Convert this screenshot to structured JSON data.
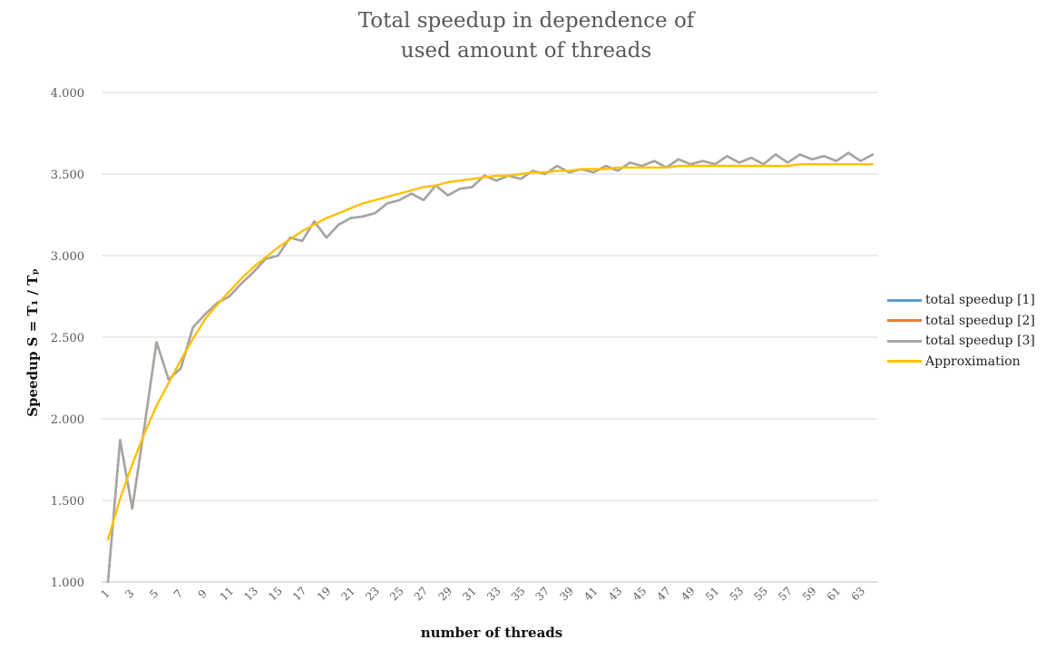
{
  "chart_data": {
    "type": "line",
    "title_lines": [
      "Total speedup in dependence of",
      "used amount of threads"
    ],
    "xlabel": "number of threads",
    "ylabel": "Speedup S = T₁ / Tₚ",
    "ylim": [
      1.0,
      4.0
    ],
    "y_ticks": [
      "1.000",
      "1.500",
      "2.000",
      "2.500",
      "3.000",
      "3.500",
      "4.000"
    ],
    "x_tick_labels": [
      "1",
      "3",
      "5",
      "7",
      "9",
      "11",
      "13",
      "15",
      "17",
      "19",
      "21",
      "23",
      "25",
      "27",
      "29",
      "31",
      "33",
      "35",
      "37",
      "39",
      "41",
      "43",
      "45",
      "47",
      "49",
      "51",
      "53",
      "55",
      "57",
      "59",
      "61",
      "63"
    ],
    "grid": true,
    "legend_position": "right",
    "x": [
      1,
      2,
      3,
      4,
      5,
      6,
      7,
      8,
      9,
      10,
      11,
      12,
      13,
      14,
      15,
      16,
      17,
      18,
      19,
      20,
      21,
      22,
      23,
      24,
      25,
      26,
      27,
      28,
      29,
      30,
      31,
      32,
      33,
      34,
      35,
      36,
      37,
      38,
      39,
      40,
      41,
      42,
      43,
      44,
      45,
      46,
      47,
      48,
      49,
      50,
      51,
      52,
      53,
      54,
      55,
      56,
      57,
      58,
      59,
      60,
      61,
      62,
      63,
      64
    ],
    "series": [
      {
        "name": "total speedup [1]",
        "color": "#5b9bd5",
        "values": [
          1.0,
          1.87,
          1.45,
          1.95,
          2.47,
          2.24,
          2.31,
          2.56,
          2.64,
          2.71,
          2.75,
          2.83,
          2.9,
          2.98,
          3.0,
          3.11,
          3.09,
          3.21,
          3.11,
          3.19,
          3.23,
          3.24,
          3.26,
          3.32,
          3.34,
          3.38,
          3.34,
          3.43,
          3.37,
          3.41,
          3.42,
          3.49,
          3.46,
          3.49,
          3.47,
          3.52,
          3.5,
          3.55,
          3.51,
          3.53,
          3.51,
          3.55,
          3.52,
          3.57,
          3.55,
          3.58,
          3.54,
          3.59,
          3.56,
          3.58,
          3.56,
          3.61,
          3.57,
          3.6,
          3.56,
          3.62,
          3.57,
          3.62,
          3.59,
          3.61,
          3.58,
          3.63,
          3.58,
          3.62
        ]
      },
      {
        "name": "total speedup [2]",
        "color": "#ed7d31",
        "values": [
          1.0,
          1.87,
          1.45,
          1.95,
          2.47,
          2.24,
          2.31,
          2.56,
          2.64,
          2.71,
          2.75,
          2.83,
          2.9,
          2.98,
          3.0,
          3.11,
          3.09,
          3.21,
          3.11,
          3.19,
          3.23,
          3.24,
          3.26,
          3.32,
          3.34,
          3.38,
          3.34,
          3.43,
          3.37,
          3.41,
          3.42,
          3.49,
          3.46,
          3.49,
          3.47,
          3.52,
          3.5,
          3.55,
          3.51,
          3.53,
          3.51,
          3.55,
          3.52,
          3.57,
          3.55,
          3.58,
          3.54,
          3.59,
          3.56,
          3.58,
          3.56,
          3.61,
          3.57,
          3.6,
          3.56,
          3.62,
          3.57,
          3.62,
          3.59,
          3.61,
          3.58,
          3.63,
          3.58,
          3.62
        ]
      },
      {
        "name": "total speedup [3]",
        "color": "#a5a5a5",
        "values": [
          1.0,
          1.87,
          1.45,
          1.95,
          2.47,
          2.24,
          2.31,
          2.56,
          2.64,
          2.71,
          2.75,
          2.83,
          2.9,
          2.98,
          3.0,
          3.11,
          3.09,
          3.21,
          3.11,
          3.19,
          3.23,
          3.24,
          3.26,
          3.32,
          3.34,
          3.38,
          3.34,
          3.43,
          3.37,
          3.41,
          3.42,
          3.49,
          3.46,
          3.49,
          3.47,
          3.52,
          3.5,
          3.55,
          3.51,
          3.53,
          3.51,
          3.55,
          3.52,
          3.57,
          3.55,
          3.58,
          3.54,
          3.59,
          3.56,
          3.58,
          3.56,
          3.61,
          3.57,
          3.6,
          3.56,
          3.62,
          3.57,
          3.62,
          3.59,
          3.61,
          3.58,
          3.63,
          3.58,
          3.62
        ]
      },
      {
        "name": "Approximation",
        "color": "#ffc000",
        "values": [
          1.26,
          1.51,
          1.72,
          1.91,
          2.08,
          2.22,
          2.36,
          2.49,
          2.61,
          2.7,
          2.78,
          2.86,
          2.93,
          2.99,
          3.05,
          3.1,
          3.15,
          3.19,
          3.23,
          3.26,
          3.29,
          3.32,
          3.34,
          3.36,
          3.38,
          3.4,
          3.42,
          3.43,
          3.45,
          3.46,
          3.47,
          3.48,
          3.49,
          3.49,
          3.5,
          3.51,
          3.51,
          3.52,
          3.52,
          3.53,
          3.53,
          3.53,
          3.54,
          3.54,
          3.54,
          3.54,
          3.54,
          3.55,
          3.55,
          3.55,
          3.55,
          3.55,
          3.55,
          3.55,
          3.55,
          3.55,
          3.55,
          3.56,
          3.56,
          3.56,
          3.56,
          3.56,
          3.56,
          3.56
        ]
      }
    ]
  }
}
